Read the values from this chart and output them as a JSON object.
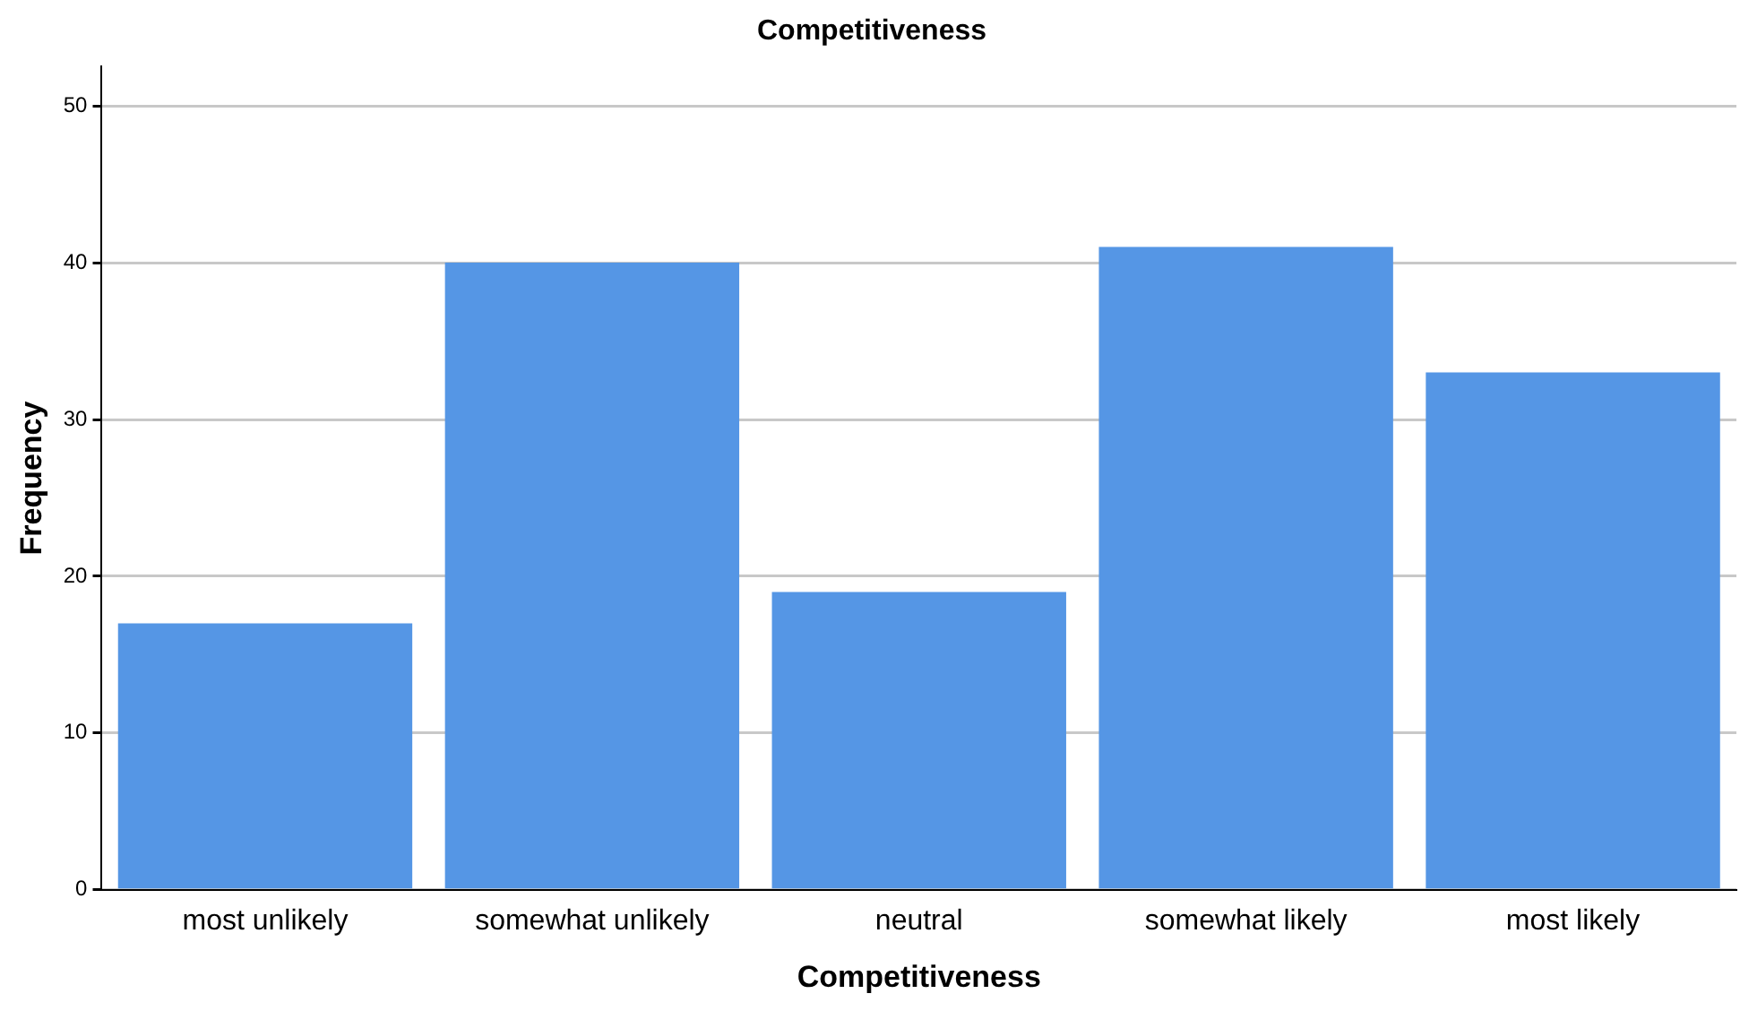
{
  "chart_data": {
    "type": "bar",
    "title": "Competitiveness",
    "xlabel": "Competitiveness",
    "ylabel": "Frequency",
    "categories": [
      "most unlikely",
      "somewhat unlikely",
      "neutral",
      "somewhat likely",
      "most likely"
    ],
    "values": [
      17,
      40,
      19,
      41,
      33
    ],
    "color": "#5596e5",
    "ylim": [
      0,
      52.5
    ],
    "yticks": [
      0,
      10,
      20,
      30,
      40,
      50
    ],
    "grid": "y",
    "legend": false
  }
}
